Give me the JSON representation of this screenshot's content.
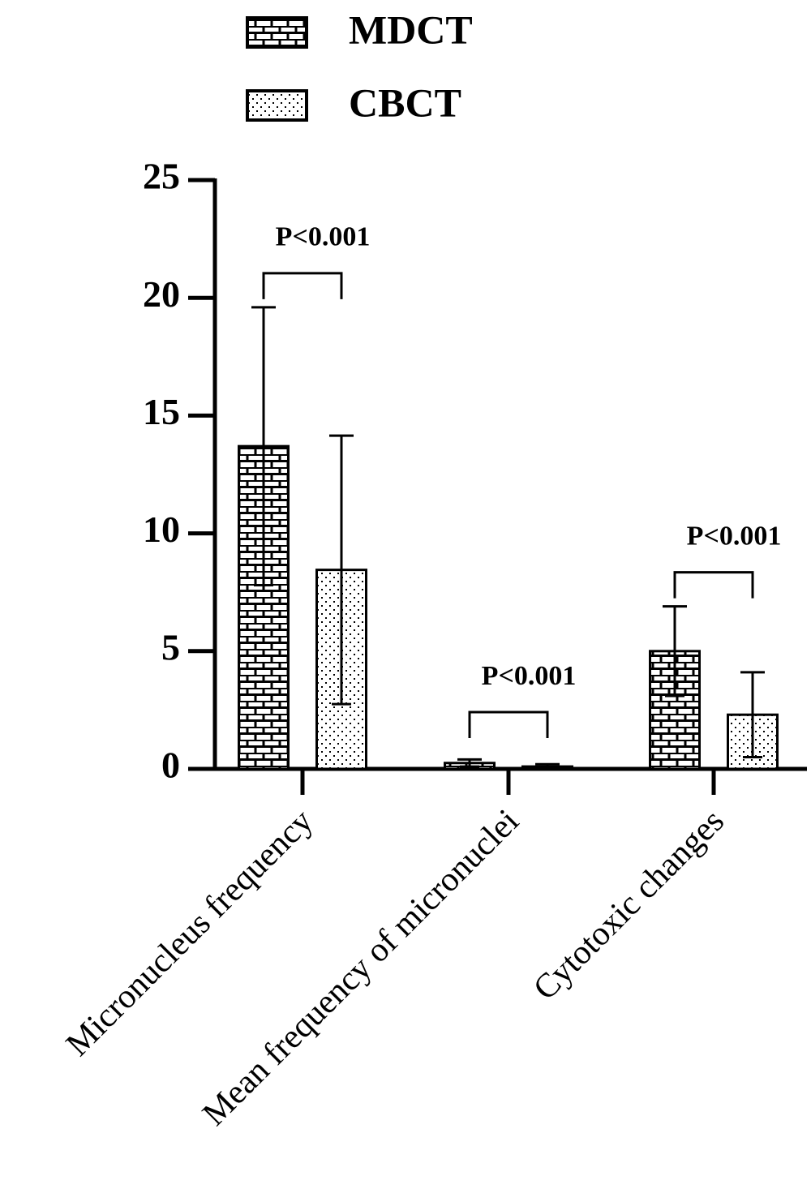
{
  "chart_data": {
    "type": "bar",
    "categories": [
      "Micronucleus frequency",
      "Mean frequency of micronuclei",
      "Cytotoxic changes"
    ],
    "series": [
      {
        "name": "MDCT",
        "pattern": "brick",
        "color": "#000000",
        "values": [
          13.7,
          0.25,
          5.0
        ],
        "errors": [
          5.9,
          0.15,
          1.9
        ]
      },
      {
        "name": "CBCT",
        "pattern": "dots",
        "color": "#000000",
        "values": [
          8.45,
          0.1,
          2.3
        ],
        "errors": [
          5.7,
          0.1,
          1.8
        ]
      }
    ],
    "annotations": [
      "P<0.001",
      "P<0.001",
      "P<0.001"
    ],
    "ylim": [
      0,
      25
    ],
    "yticks": [
      0,
      5,
      10,
      15,
      20,
      25
    ],
    "grid": false
  }
}
